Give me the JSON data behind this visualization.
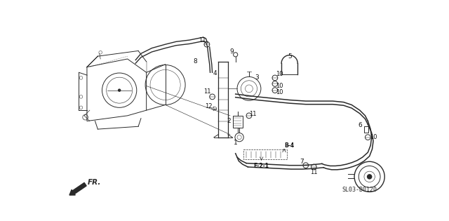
{
  "bg_color": "#ffffff",
  "line_color": "#2a2a2a",
  "label_color": "#111111",
  "diagram_code": "SL03-B0120",
  "fr_label": "FR.",
  "figsize": [
    6.4,
    3.15
  ],
  "dpi": 100
}
